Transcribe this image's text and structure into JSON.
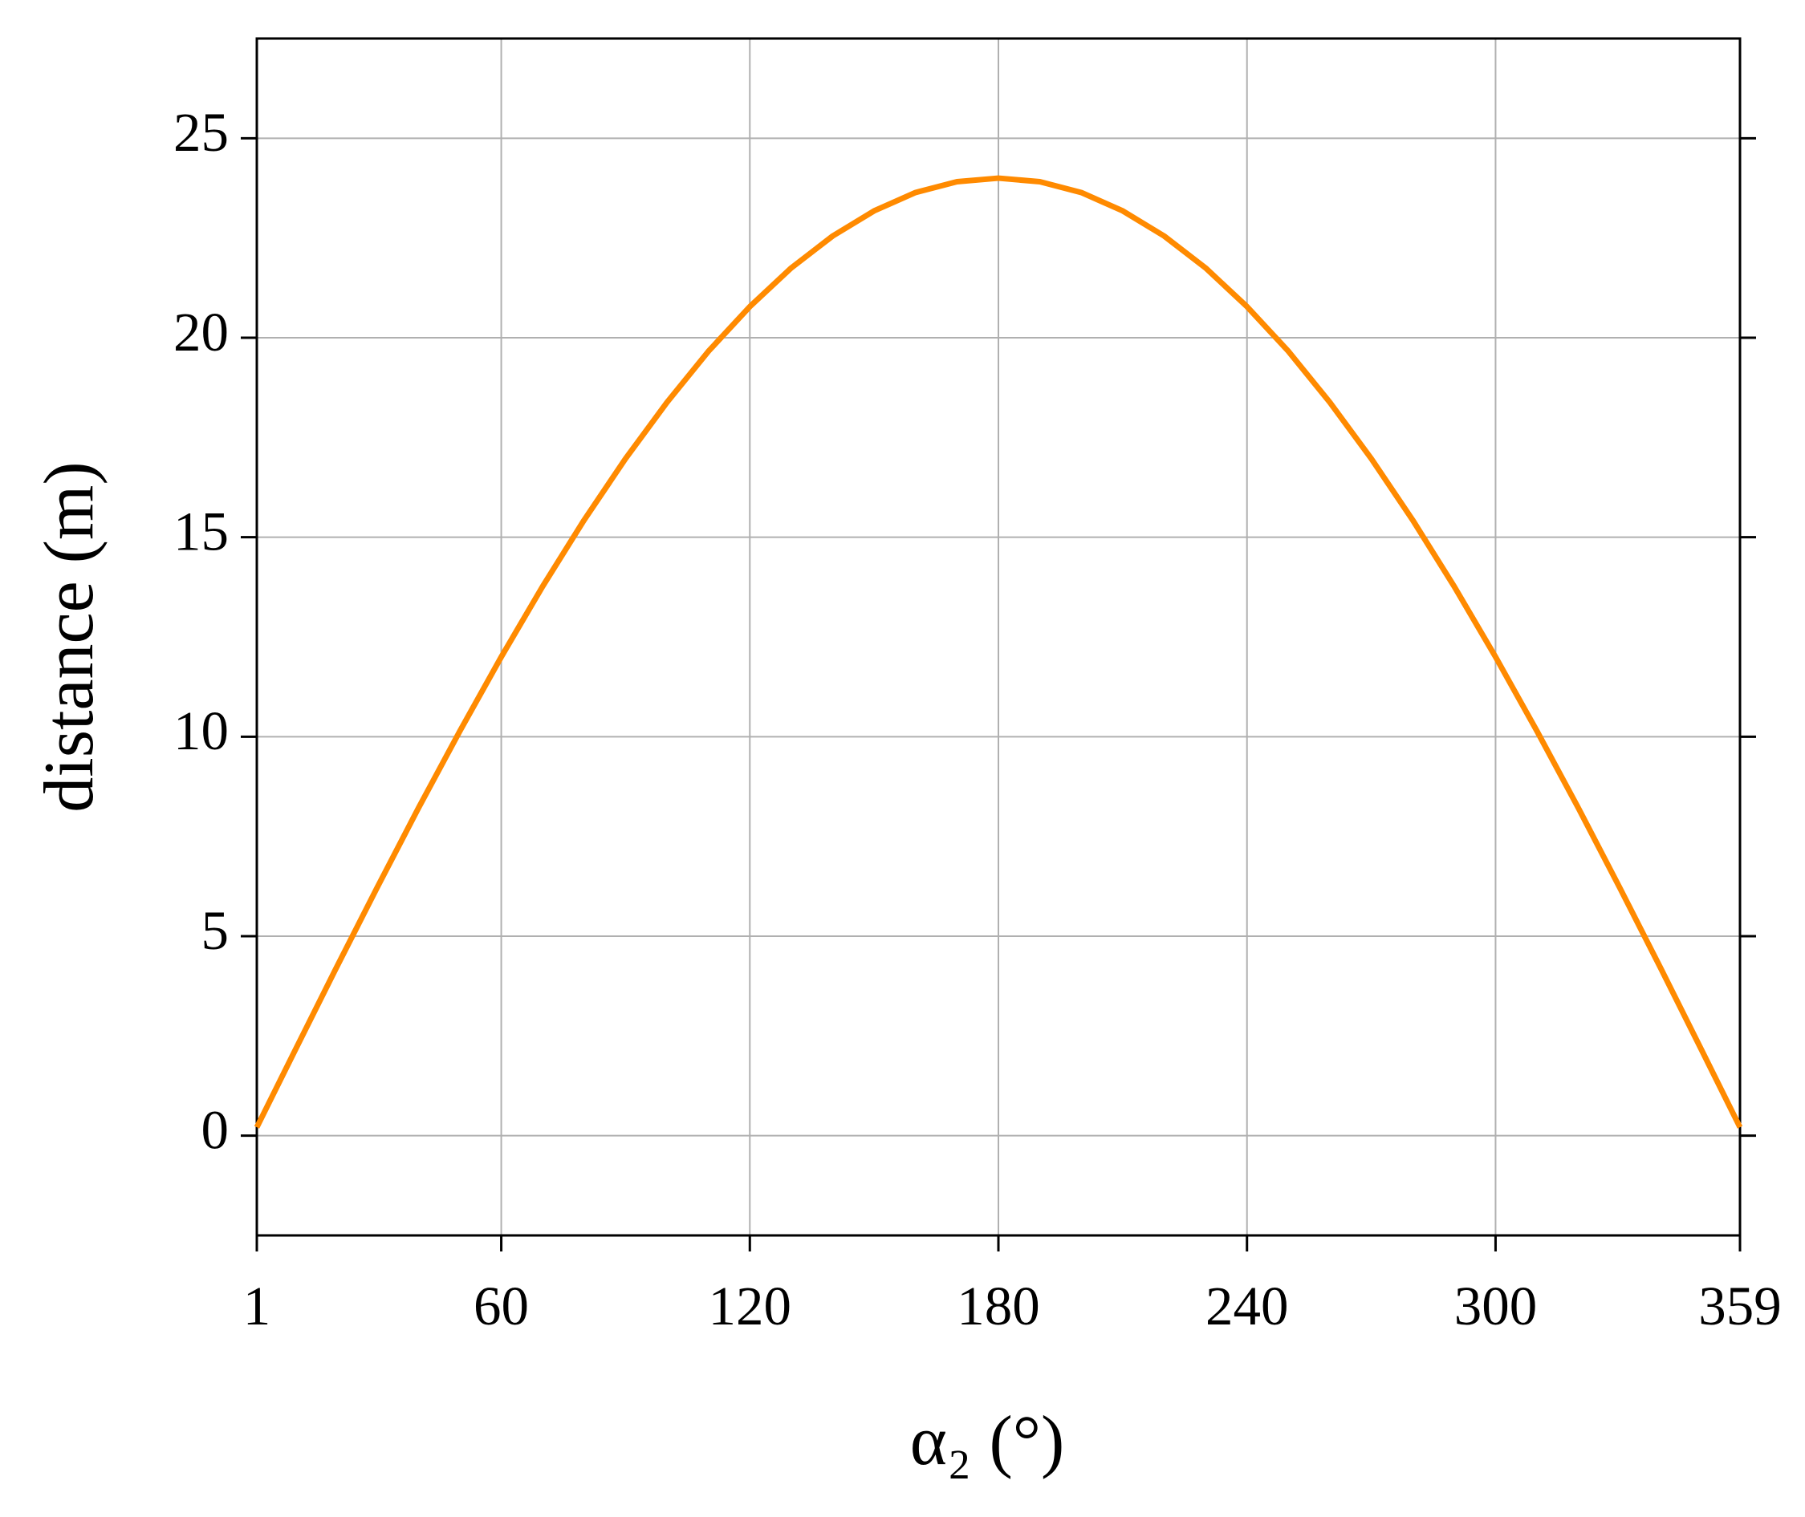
{
  "chart_data": {
    "type": "line",
    "xlabel": "α₂ (°)",
    "ylabel": "distance (m)",
    "x": [
      1,
      10,
      20,
      30,
      40,
      50,
      60,
      70,
      80,
      90,
      100,
      110,
      120,
      130,
      140,
      150,
      160,
      170,
      180,
      190,
      200,
      210,
      220,
      230,
      240,
      250,
      260,
      270,
      280,
      290,
      300,
      310,
      320,
      330,
      340,
      350,
      359
    ],
    "series": [
      {
        "name": "distance",
        "color": "#ff8a00",
        "values": [
          0.21,
          2.09,
          4.17,
          6.21,
          8.21,
          10.14,
          12,
          13.77,
          15.43,
          16.97,
          18.38,
          19.66,
          20.78,
          21.75,
          22.55,
          23.18,
          23.64,
          23.91,
          24,
          23.91,
          23.64,
          23.18,
          22.55,
          21.75,
          20.78,
          19.66,
          18.38,
          16.97,
          15.43,
          13.77,
          12,
          10.14,
          8.21,
          6.21,
          4.17,
          2.09,
          0.21
        ]
      }
    ],
    "xlim": [
      1,
      359
    ],
    "xticks": [
      1,
      60,
      120,
      180,
      240,
      300,
      359
    ],
    "ylim": [
      -2.5,
      27.5
    ],
    "yticks": [
      0,
      5,
      10,
      15,
      20,
      25
    ],
    "grid": true
  }
}
